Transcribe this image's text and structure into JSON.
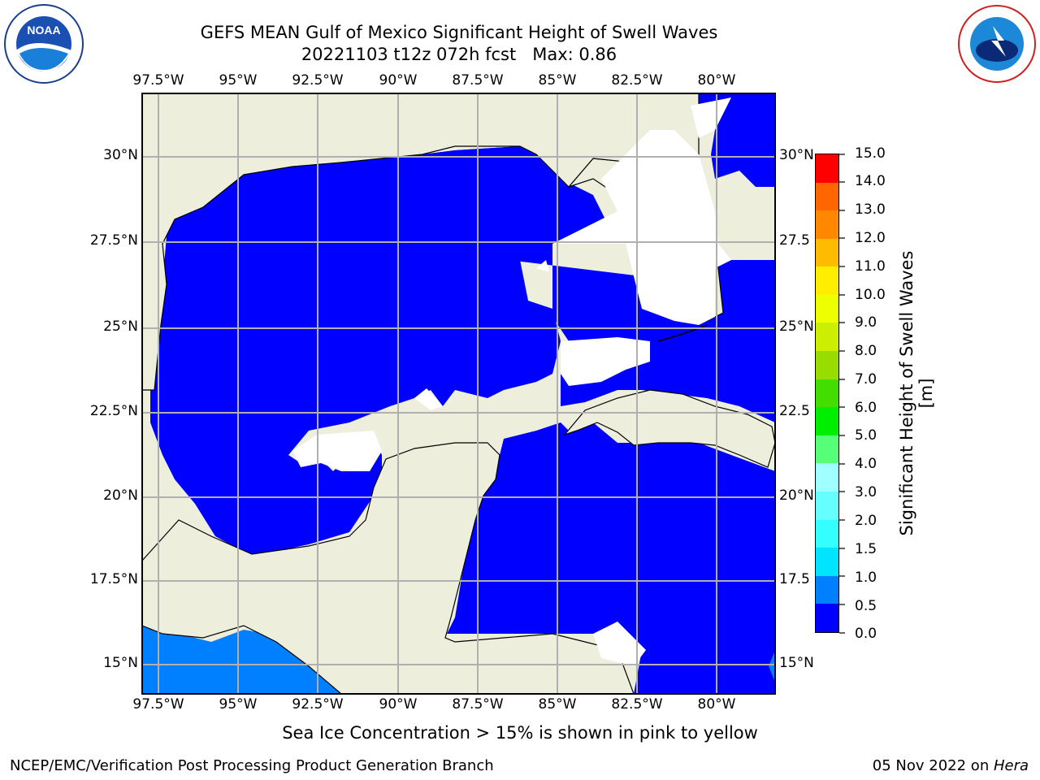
{
  "header": {
    "title_line1": "GEFS MEAN Gulf of Mexico Significant Height of Swell Waves",
    "title_line2": "20221103 t12z 072h fcst   Max: 0.86"
  },
  "logos": {
    "left": {
      "icon": "noaa-logo",
      "text": "NOAA"
    },
    "right": {
      "icon": "national-weather-service-logo",
      "text": "NATIONAL WEATHER SERVICE"
    }
  },
  "map": {
    "lon_ticks": [
      "97.5°W",
      "95°W",
      "92.5°W",
      "90°W",
      "87.5°W",
      "85°W",
      "82.5°W",
      "80°W"
    ],
    "lat_ticks": [
      "30°N",
      "27.5°N",
      "25°N",
      "22.5°N",
      "20°N",
      "17.5°N",
      "15°N"
    ],
    "right_lat_ticks": [
      "30°N",
      "27.5",
      "25°N",
      "22.5",
      "20°N",
      "17.5",
      "15°N"
    ],
    "lon_range": [
      -98,
      -78.5
    ],
    "lat_range": [
      14,
      32
    ],
    "colors": {
      "land": "#eeeedd",
      "ocean_value": "#0000ff",
      "swell_1_0": "#007fff",
      "grid": "#b0b0b0",
      "coast": "#000000"
    }
  },
  "colorbar": {
    "label": "Significant Height of Swell Waves [m]",
    "ticks": [
      "0.0",
      "0.5",
      "1.0",
      "1.5",
      "2.0",
      "3.0",
      "4.0",
      "5.0",
      "6.0",
      "7.0",
      "8.0",
      "9.0",
      "10.0",
      "11.0",
      "12.0",
      "13.0",
      "14.0",
      "15.0"
    ],
    "colors": [
      "#0000ff",
      "#007fff",
      "#00e5ff",
      "#33ffff",
      "#66ffff",
      "#a0ffff",
      "#55ff77",
      "#00ee00",
      "#44dd00",
      "#99dd00",
      "#ccee00",
      "#eeff00",
      "#ffee00",
      "#ffbb00",
      "#ff8800",
      "#ff6600",
      "#ff3300",
      "#ff0000"
    ]
  },
  "note": "Sea Ice Concentration > 15% is shown in pink to yellow",
  "footer": {
    "left": "NCEP/EMC/Verification Post Processing Product Generation Branch",
    "right_date": "05 Nov 2022 on ",
    "right_machine": "Hera"
  }
}
